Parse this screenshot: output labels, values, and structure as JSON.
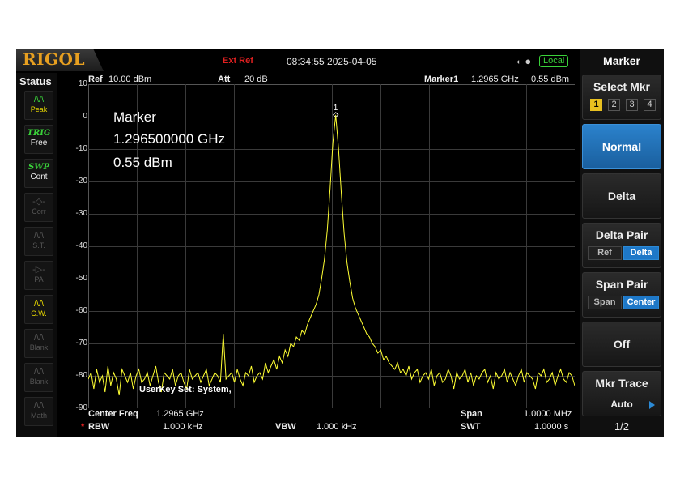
{
  "brand": "RIGOL",
  "topbar": {
    "ext_ref": "Ext Ref",
    "datetime": "08:34:55 2025-04-05",
    "usb_icon": "usb-icon",
    "remote": "Local"
  },
  "status": {
    "title": "Status",
    "items": [
      {
        "label": "Peak",
        "icon": "peak-icon",
        "state": "active"
      },
      {
        "tag": "TRIG",
        "label": "Free",
        "state": "active"
      },
      {
        "tag": "SWP",
        "label": "Cont",
        "state": "active"
      },
      {
        "label": "Corr",
        "state": "inactive"
      },
      {
        "label": "S.T.",
        "state": "inactive"
      },
      {
        "label": "PA",
        "state": "inactive"
      },
      {
        "label": "C.W.",
        "state": "active"
      },
      {
        "label": "Blank",
        "state": "inactive"
      },
      {
        "label": "Blank",
        "state": "inactive"
      },
      {
        "label": "Math",
        "state": "inactive"
      }
    ]
  },
  "header": {
    "ref_label": "Ref",
    "ref_value": "10.00 dBm",
    "att_label": "Att",
    "att_value": "20 dB",
    "marker_label": "Marker1",
    "marker_freq": "1.2965 GHz",
    "marker_amp": "0.55 dBm"
  },
  "marker_readout": {
    "title": "Marker",
    "frequency": "1.296500000 GHz",
    "amplitude": "0.55 dBm",
    "marker_number": "1"
  },
  "userkey": "UserKey Set:   System,",
  "bottom": {
    "center_label": "Center Freq",
    "center_value": "1.2965 GHz",
    "span_label": "Span",
    "span_value": "1.0000 MHz",
    "rbw_flag": "*",
    "rbw_label": "RBW",
    "rbw_value": "1.000 kHz",
    "vbw_label": "VBW",
    "vbw_value": "1.000 kHz",
    "swt_label": "SWT",
    "swt_value": "1.0000 s"
  },
  "menu": {
    "title": "Marker",
    "select_label": "Select Mkr",
    "select_numbers": [
      "1",
      "2",
      "3",
      "4"
    ],
    "selected_marker": "1",
    "normal": "Normal",
    "delta": "Delta",
    "delta_pair_label": "Delta Pair",
    "delta_pair_options": [
      "Ref",
      "Delta"
    ],
    "span_pair_label": "Span Pair",
    "span_pair_options": [
      "Span",
      "Center"
    ],
    "off": "Off",
    "trace_label": "Mkr Trace",
    "trace_value": "Auto",
    "page": "1/2"
  },
  "colors": {
    "trace": "#ffff33",
    "accent": "#1e78c8",
    "logo": "#e8a020",
    "alert": "#e02020",
    "status_green": "#3ad23a"
  },
  "chart_data": {
    "type": "line",
    "title": "",
    "xlabel": "",
    "ylabel": "",
    "y_tick_labels": [
      "10",
      "0",
      "-10",
      "-20",
      "-30",
      "-40",
      "-50",
      "-60",
      "-70",
      "-80",
      "-90"
    ],
    "ylim": [
      -90,
      10
    ],
    "x_unit": "GHz",
    "center_ghz": 1.2965,
    "span_mhz": 1.0,
    "peak": {
      "x_ghz": 1.2965,
      "y_dbm": 0.55
    },
    "series": [
      {
        "values": [
          -81,
          -79,
          -84,
          -78,
          -82,
          -80,
          -85,
          -77,
          -83,
          -79,
          -81,
          -86,
          -78,
          -80,
          -82,
          -79,
          -84,
          -80,
          -78,
          -82,
          -81,
          -79,
          -83,
          -80,
          -77,
          -82,
          -85,
          -79,
          -80,
          -81,
          -78,
          -83,
          -80,
          -79,
          -82,
          -84,
          -78,
          -81,
          -80,
          -79,
          -82,
          -80,
          -78,
          -83,
          -81,
          -79,
          -80,
          -82,
          -67,
          -81,
          -80,
          -79,
          -82,
          -78,
          -81,
          -83,
          -79,
          -80,
          -77,
          -82,
          -80,
          -79,
          -81,
          -76,
          -79,
          -77,
          -75,
          -78,
          -74,
          -76,
          -72,
          -74,
          -70,
          -71,
          -68,
          -69,
          -66,
          -67,
          -64,
          -62,
          -60,
          -58,
          -55,
          -50,
          -44,
          -35,
          -22,
          -8,
          0.55,
          -10,
          -24,
          -36,
          -45,
          -51,
          -56,
          -59,
          -61,
          -63,
          -65,
          -67,
          -68,
          -70,
          -71,
          -73,
          -72,
          -75,
          -74,
          -76,
          -77,
          -78,
          -76,
          -79,
          -78,
          -80,
          -77,
          -81,
          -79,
          -78,
          -82,
          -80,
          -79,
          -81,
          -78,
          -83,
          -80,
          -79,
          -82,
          -81,
          -78,
          -80,
          -84,
          -79,
          -81,
          -80,
          -78,
          -82,
          -79,
          -83,
          -80,
          -81,
          -79,
          -78,
          -82,
          -80,
          -84,
          -79,
          -81,
          -80,
          -78,
          -82,
          -79,
          -81,
          -83,
          -80,
          -78,
          -82,
          -79,
          -80,
          -81,
          -84,
          -79,
          -80,
          -78,
          -82,
          -81,
          -79,
          -83,
          -80,
          -78,
          -81,
          -82,
          -79,
          -80,
          -83
        ]
      }
    ]
  }
}
